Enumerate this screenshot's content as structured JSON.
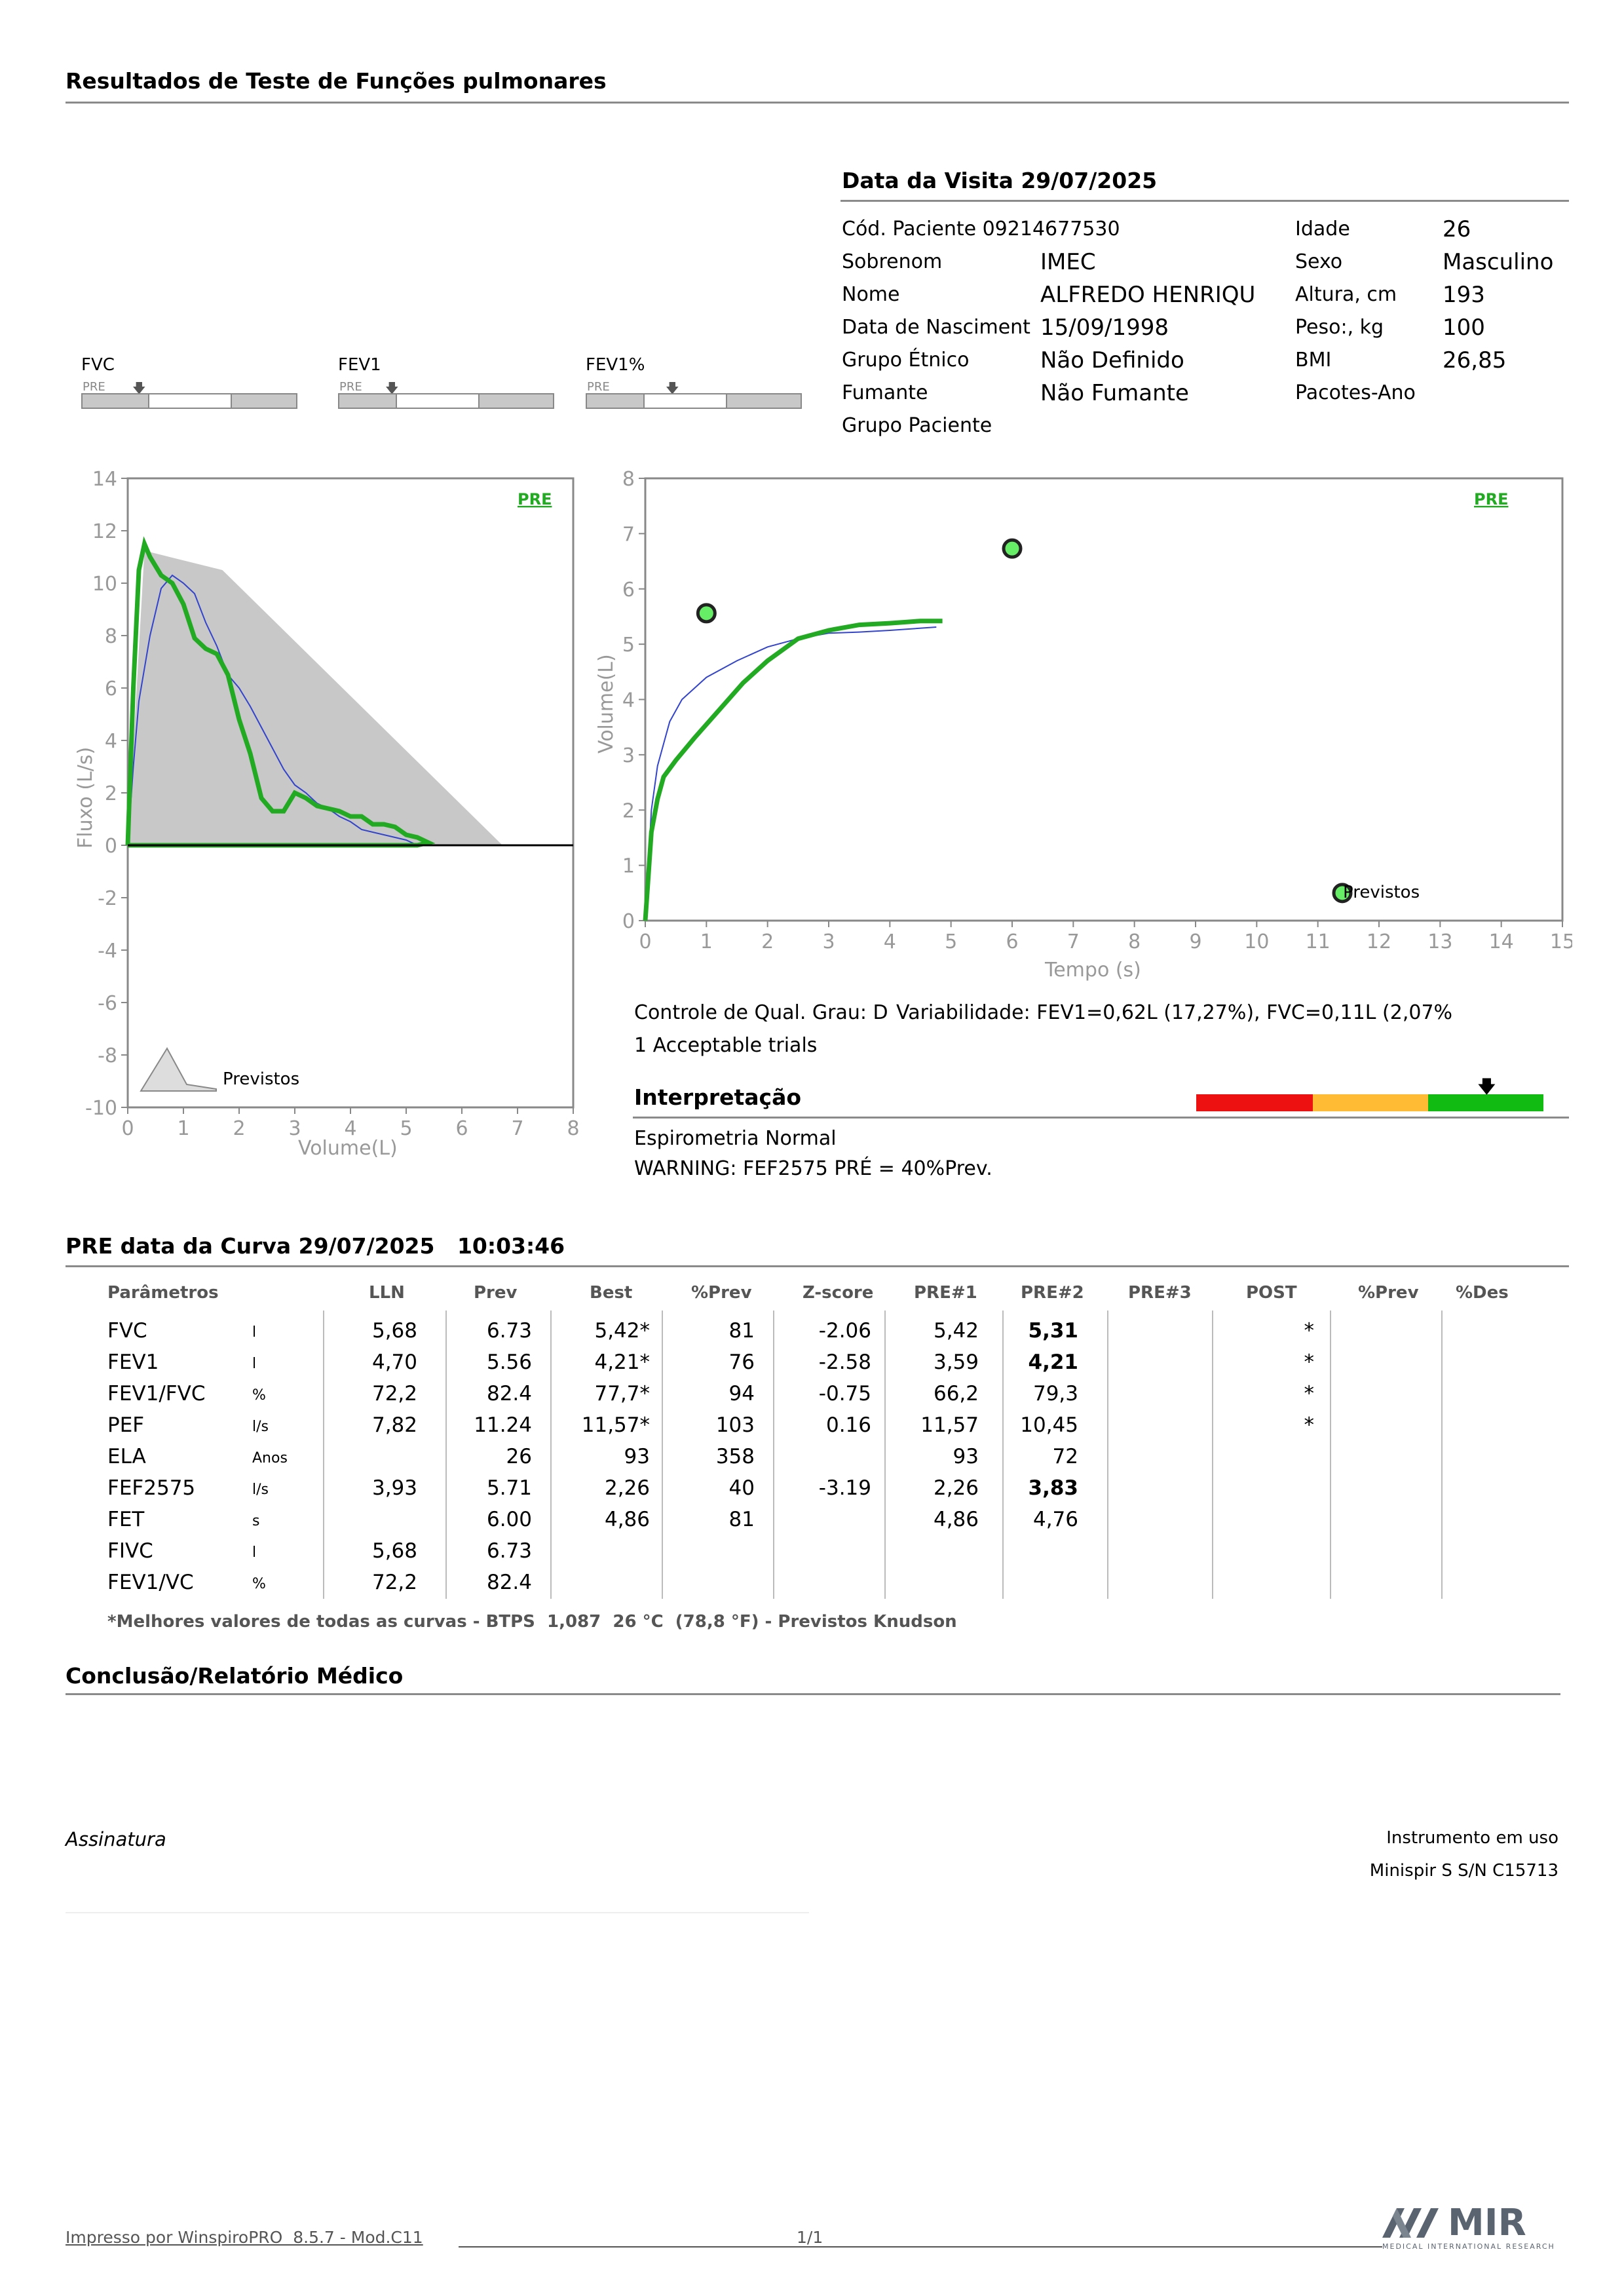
{
  "header": {
    "title": "Resultados de Teste de Funções pulmonares"
  },
  "visit": {
    "title": "Data da Visita 29/07/2025",
    "patient_code": "Cód. Paciente 09214677530",
    "rows": [
      {
        "label": "Sobrenom",
        "value": "IMEC"
      },
      {
        "label": "Nome",
        "value": "ALFREDO HENRIQU"
      },
      {
        "label": "Data de Nasciment",
        "value": "15/09/1998"
      },
      {
        "label": "Grupo Étnico",
        "value": "Não Definido"
      },
      {
        "label": "Fumante",
        "value": "Não Fumante"
      },
      {
        "label": "Grupo Paciente",
        "value": ""
      }
    ],
    "right_rows": [
      {
        "label": "Idade",
        "value": "26"
      },
      {
        "label": "Sexo",
        "value": "Masculino"
      },
      {
        "label": "Altura, cm",
        "value": "193"
      },
      {
        "label": "Peso:, kg",
        "value": "100"
      },
      {
        "label": "BMI",
        "value": "26,85"
      },
      {
        "label": "Pacotes-Ano",
        "value": ""
      }
    ]
  },
  "quality_bars": [
    {
      "label": "FVC",
      "tag": "PRE"
    },
    {
      "label": "FEV1",
      "tag": "PRE"
    },
    {
      "label": "FEV1%",
      "tag": "PRE"
    }
  ],
  "flow_chart": {
    "tag": "PRE",
    "legend": "Previstos",
    "xlabel": "Volume(L)",
    "ylabel": "Fluxo (L/s)",
    "xticks": [
      "0",
      "1",
      "2",
      "3",
      "4",
      "5",
      "6",
      "7",
      "8"
    ],
    "yticks": [
      "14",
      "12",
      "10",
      "8",
      "6",
      "4",
      "2",
      "0",
      "-2",
      "-4",
      "-6",
      "-8",
      "-10"
    ]
  },
  "time_chart": {
    "tag": "PRE",
    "legend": "Previstos",
    "xlabel": "Tempo (s)",
    "ylabel": "Volume(L)",
    "xticks": [
      "0",
      "1",
      "2",
      "3",
      "4",
      "5",
      "6",
      "7",
      "8",
      "9",
      "10",
      "11",
      "12",
      "13",
      "14",
      "15"
    ],
    "yticks": [
      "8",
      "7",
      "6",
      "5",
      "4",
      "3",
      "2",
      "1",
      "0"
    ]
  },
  "chart_data": [
    {
      "type": "line",
      "title": "",
      "xlabel": "Volume(L)",
      "ylabel": "Fluxo (L/s)",
      "xlim": [
        0,
        8
      ],
      "ylim": [
        -10,
        14
      ],
      "series": [
        {
          "name": "PRE",
          "color": "#22aa22",
          "x": [
            0,
            0.1,
            0.2,
            0.3,
            0.4,
            0.6,
            0.8,
            1.0,
            1.2,
            1.4,
            1.6,
            1.8,
            2.0,
            2.2,
            2.4,
            2.6,
            2.8,
            3.0,
            3.2,
            3.4,
            3.6,
            3.8,
            4.0,
            4.2,
            4.4,
            4.6,
            4.8,
            5.0,
            5.2,
            5.4,
            5.2,
            4.0,
            2.0,
            0
          ],
          "y": [
            0,
            6.0,
            10.5,
            11.5,
            11.0,
            10.3,
            10.0,
            9.2,
            7.9,
            7.5,
            7.3,
            6.5,
            4.8,
            3.5,
            1.8,
            1.3,
            1.3,
            2.0,
            1.8,
            1.5,
            1.4,
            1.3,
            1.1,
            1.1,
            0.8,
            0.8,
            0.7,
            0.4,
            0.3,
            0.1,
            0,
            0,
            0,
            0
          ]
        },
        {
          "name": "",
          "color": "#3344cc",
          "x": [
            0,
            0.1,
            0.2,
            0.4,
            0.6,
            0.8,
            1.0,
            1.2,
            1.4,
            1.6,
            1.8,
            2.0,
            2.2,
            2.4,
            2.6,
            2.8,
            3.0,
            3.2,
            3.4,
            3.6,
            3.8,
            4.0,
            4.2,
            4.4,
            4.6,
            4.8,
            5.0,
            5.2
          ],
          "y": [
            0,
            3.0,
            5.5,
            8.0,
            9.8,
            10.3,
            10.0,
            9.6,
            8.5,
            7.6,
            6.5,
            6.0,
            5.3,
            4.5,
            3.7,
            2.9,
            2.3,
            2.0,
            1.6,
            1.4,
            1.1,
            0.9,
            0.6,
            0.5,
            0.4,
            0.3,
            0.2,
            0.0
          ]
        },
        {
          "name": "Previstos",
          "color": "#c8c8c8",
          "x": [
            0,
            0.3,
            0.75,
            1.7,
            6.73
          ],
          "y": [
            0,
            11.24,
            11.0,
            10.5,
            0
          ]
        }
      ]
    },
    {
      "type": "line",
      "title": "",
      "xlabel": "Tempo (s)",
      "ylabel": "Volume(L)",
      "xlim": [
        0,
        15
      ],
      "ylim": [
        0,
        8
      ],
      "series": [
        {
          "name": "PRE",
          "color": "#22aa22",
          "x": [
            0,
            0.05,
            0.1,
            0.2,
            0.3,
            0.5,
            0.8,
            1.2,
            1.6,
            2.0,
            2.5,
            3.0,
            3.5,
            4.0,
            4.5,
            4.86
          ],
          "y": [
            0,
            0.8,
            1.6,
            2.2,
            2.6,
            2.9,
            3.3,
            3.8,
            4.3,
            4.7,
            5.1,
            5.25,
            5.35,
            5.38,
            5.42,
            5.42
          ]
        },
        {
          "name": "",
          "color": "#3344cc",
          "x": [
            0,
            0.05,
            0.1,
            0.2,
            0.4,
            0.6,
            1.0,
            1.5,
            2.0,
            2.5,
            3.0,
            3.5,
            4.0,
            4.76
          ],
          "y": [
            0,
            1.0,
            2.0,
            2.8,
            3.6,
            4.0,
            4.4,
            4.7,
            4.95,
            5.1,
            5.2,
            5.22,
            5.25,
            5.31
          ]
        },
        {
          "name": "Previstos",
          "color": "#66ee66",
          "type": "scatter",
          "x": [
            1.0,
            6.0,
            11.4
          ],
          "y": [
            5.56,
            6.73,
            0.5
          ]
        }
      ]
    }
  ],
  "quality": {
    "control": "Controle de Qual. Grau: D",
    "variability": "Variabilidade: FEV1=0,62L (17,27%), FVC=0,11L (2,07%",
    "trials": "1 Acceptable trials",
    "interp_title": "Interpretação",
    "interp_text": "Espirometria Normal",
    "warning": "WARNING: FEF2575 PRÉ = 40%Prev."
  },
  "results": {
    "title": "PRE data da Curva 29/07/2025   10:03:46",
    "headers": [
      "Parâmetros",
      "LLN",
      "Prev",
      "Best",
      "%Prev",
      "Z-score",
      "PRE#1",
      "PRE#2",
      "PRE#3",
      "POST",
      "%Prev",
      "%Des"
    ],
    "rows": [
      {
        "param": "FVC",
        "unit": "l",
        "lln": "5,68",
        "prev": "6.73",
        "best": "5,42*",
        "pct": "81",
        "z": "-2.06",
        "pre1": "5,42",
        "pre2": "5,31",
        "pre2_bold": true,
        "post": "*"
      },
      {
        "param": "FEV1",
        "unit": "l",
        "lln": "4,70",
        "prev": "5.56",
        "best": "4,21*",
        "pct": "76",
        "z": "-2.58",
        "pre1": "3,59",
        "pre2": "4,21",
        "pre2_bold": true,
        "post": "*"
      },
      {
        "param": "FEV1/FVC",
        "unit": "%",
        "lln": "72,2",
        "prev": "82.4",
        "best": "77,7*",
        "pct": "94",
        "z": "-0.75",
        "pre1": "66,2",
        "pre2": "79,3",
        "pre2_bold": false,
        "post": "*"
      },
      {
        "param": "PEF",
        "unit": "l/s",
        "lln": "7,82",
        "prev": "11.24",
        "best": "11,57*",
        "pct": "103",
        "z": "0.16",
        "pre1": "11,57",
        "pre2": "10,45",
        "pre2_bold": false,
        "post": "*"
      },
      {
        "param": "ELA",
        "unit": "Anos",
        "lln": "",
        "prev": "26",
        "best": "93",
        "pct": "358",
        "z": "",
        "pre1": "93",
        "pre2": "72",
        "pre2_bold": false,
        "post": ""
      },
      {
        "param": "FEF2575",
        "unit": "l/s",
        "lln": "3,93",
        "prev": "5.71",
        "best": "2,26",
        "pct": "40",
        "z": "-3.19",
        "pre1": "2,26",
        "pre2": "3,83",
        "pre2_bold": true,
        "post": ""
      },
      {
        "param": "FET",
        "unit": "s",
        "lln": "",
        "prev": "6.00",
        "best": "4,86",
        "pct": "81",
        "z": "",
        "pre1": "4,86",
        "pre2": "4,76",
        "pre2_bold": false,
        "post": ""
      },
      {
        "param": "FIVC",
        "unit": "l",
        "lln": "5,68",
        "prev": "6.73",
        "best": "",
        "pct": "",
        "z": "",
        "pre1": "",
        "pre2": "",
        "pre2_bold": false,
        "post": ""
      },
      {
        "param": "FEV1/VC",
        "unit": "%",
        "lln": "72,2",
        "prev": "82.4",
        "best": "",
        "pct": "",
        "z": "",
        "pre1": "",
        "pre2": "",
        "pre2_bold": false,
        "post": ""
      }
    ],
    "footnote": "*Melhores valores de todas as curvas - BTPS  1,087  26 °C  (78,8 °F) - Previstos Knudson"
  },
  "conclusion": {
    "title": "Conclusão/Relatório Médico"
  },
  "signature": {
    "label": "Assinatura",
    "instrument_label": "Instrumento em uso",
    "instrument": "Minispir S S/N C15713"
  },
  "footer": {
    "printed_by": "Impresso por WinspiroPRO  8.5.7 - Mod.C11",
    "page": "1/1",
    "logo_text": "MIR",
    "logo_sub": "MEDICAL INTERNATIONAL RESEARCH"
  },
  "colors": {
    "green": "#22aa22",
    "blue": "#3344cc",
    "grey_fill": "#c8c8c8",
    "red": "#ee1111",
    "orange": "#ffbb33",
    "good": "#11bb11"
  }
}
